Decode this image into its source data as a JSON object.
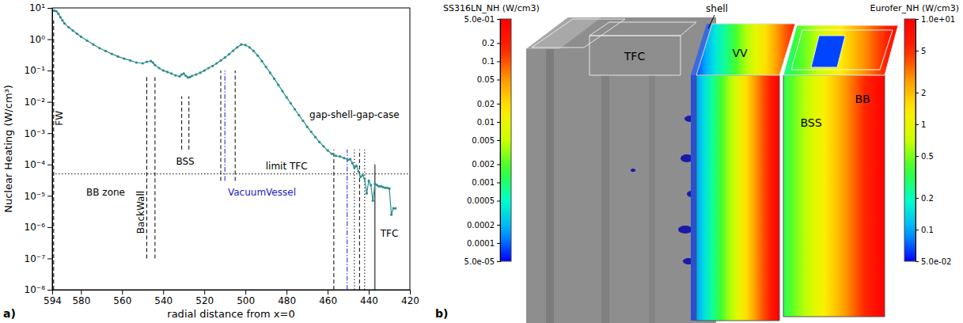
{
  "chart_data": [
    {
      "type": "line",
      "panel": "a)",
      "x_label": "radial distance from x=0",
      "y_label": "Nuclear Heating (W/cm³)",
      "log": "y",
      "xlim": [
        594,
        420
      ],
      "ylim": [
        1e-08,
        10
      ],
      "xticks": [
        594,
        580,
        560,
        540,
        520,
        500,
        480,
        460,
        440,
        420
      ],
      "yticks": [
        {
          "value": 1e-08,
          "label": "10⁻⁸"
        },
        {
          "value": 1e-07,
          "label": "10⁻⁷"
        },
        {
          "value": 1e-06,
          "label": "10⁻⁶"
        },
        {
          "value": 1e-05,
          "label": "10⁻⁵"
        },
        {
          "value": 0.0001,
          "label": "10⁻⁴"
        },
        {
          "value": 0.001,
          "label": "10⁻³"
        },
        {
          "value": 0.01,
          "label": "10⁻²"
        },
        {
          "value": 0.1,
          "label": "10⁻¹"
        },
        {
          "value": 1,
          "label": "10⁰"
        },
        {
          "value": 10,
          "label": "10¹"
        }
      ],
      "color": "#2b8c8c",
      "marker": "circle",
      "line_style": "solid",
      "x": [
        594,
        593,
        592,
        591,
        590,
        589,
        588,
        586,
        584,
        582,
        580,
        577,
        574,
        571,
        568,
        565,
        562,
        559,
        556,
        553,
        550,
        548,
        546,
        545,
        544,
        542,
        540,
        538,
        536,
        534,
        532,
        531,
        530,
        529,
        528,
        527,
        526,
        524,
        522,
        520,
        518,
        516,
        514,
        512,
        510,
        508,
        506,
        504,
        502,
        500,
        498,
        496,
        494,
        492,
        490,
        488,
        486,
        484,
        482,
        480,
        478,
        476,
        474,
        472,
        470,
        468,
        466,
        464,
        462,
        460,
        458,
        456,
        454,
        452,
        450,
        449,
        448,
        447,
        446,
        445,
        444,
        443,
        442,
        441,
        440,
        439,
        438,
        437,
        436,
        435,
        434,
        433,
        432,
        431,
        430,
        429,
        428,
        427
      ],
      "values": [
        8,
        8.2,
        7.8,
        6.5,
        5,
        4,
        3.2,
        2.4,
        1.9,
        1.5,
        1.2,
        0.9,
        0.68,
        0.52,
        0.42,
        0.34,
        0.28,
        0.24,
        0.21,
        0.18,
        0.17,
        0.19,
        0.2,
        0.18,
        0.15,
        0.12,
        0.1,
        0.09,
        0.08,
        0.07,
        0.065,
        0.075,
        0.08,
        0.068,
        0.06,
        0.062,
        0.068,
        0.075,
        0.085,
        0.1,
        0.12,
        0.14,
        0.17,
        0.21,
        0.26,
        0.33,
        0.43,
        0.55,
        0.68,
        0.65,
        0.55,
        0.42,
        0.3,
        0.2,
        0.13,
        0.085,
        0.055,
        0.035,
        0.022,
        0.014,
        0.009,
        0.0058,
        0.0038,
        0.0025,
        0.0016,
        0.0011,
        0.00075,
        0.00052,
        0.00038,
        0.00028,
        0.00022,
        0.00019,
        0.00018,
        0.00016,
        0.00014,
        0.00015,
        0.00011,
        8e-05,
        9e-05,
        6e-05,
        4e-05,
        4.5e-05,
        3.5e-05,
        1.2e-05,
        3e-05,
        2.2e-05,
        7e-06,
        2.4e-05,
        2.2e-05,
        2e-05,
        2e-05,
        1.9e-05,
        1.8e-05,
        1.8e-05,
        1.7e-05,
        2.5e-06,
        4e-06,
        4e-06
      ],
      "vlines": [
        {
          "x": 593.3,
          "y_top": 4,
          "y_bottom": 1e-08,
          "line_style": "dashed",
          "color": "#000000"
        },
        {
          "x": 548,
          "y_top": 0.07,
          "y_bottom": 1e-07,
          "line_style": "dashed",
          "color": "#000000"
        },
        {
          "x": 544,
          "y_top": 0.07,
          "y_bottom": 1e-07,
          "line_style": "dashed",
          "color": "#000000"
        },
        {
          "x": 531,
          "y_top": 0.015,
          "y_bottom": 0.0003,
          "line_style": "dashed",
          "color": "#000000"
        },
        {
          "x": 527.5,
          "y_top": 0.015,
          "y_bottom": 0.0003,
          "line_style": "dashed",
          "color": "#000000"
        },
        {
          "x": 512,
          "y_top": 0.1,
          "y_bottom": 3e-05,
          "line_style": "dashed",
          "color": "#000000"
        },
        {
          "x": 510,
          "y_top": 0.1,
          "y_bottom": 3e-05,
          "line_style": "dashdot",
          "color": "#1a1acc"
        },
        {
          "x": 505,
          "y_top": 0.1,
          "y_bottom": 3e-05,
          "line_style": "dashed",
          "color": "#000000"
        },
        {
          "x": 457,
          "y_top": 0.0003,
          "y_bottom": 1e-08,
          "line_style": "dashed",
          "color": "#000000"
        },
        {
          "x": 450.5,
          "y_top": 0.0003,
          "y_bottom": 1e-08,
          "line_style": "dashdot",
          "color": "#1a1acc"
        },
        {
          "x": 447,
          "y_top": 0.0003,
          "y_bottom": 1e-08,
          "line_style": "dotted",
          "color": "#000000"
        },
        {
          "x": 444.5,
          "y_top": 0.0003,
          "y_bottom": 1e-08,
          "line_style": "dashed",
          "color": "#000000"
        },
        {
          "x": 442,
          "y_top": 0.0003,
          "y_bottom": 1e-08,
          "line_style": "dotted",
          "color": "#000000"
        },
        {
          "x": 437,
          "y_top": 0.0001,
          "y_bottom": 1e-08,
          "line_style": "solid",
          "color": "#000000"
        }
      ],
      "hlines": [
        {
          "y": 5e-05,
          "line_style": "dotted",
          "color": "#000000"
        }
      ],
      "line_labels": [
        {
          "text": "FW",
          "x": 589,
          "y": 0.003
        },
        {
          "text": "BackWall",
          "x": 549.5,
          "y": 3e-06
        }
      ],
      "annotations": [
        {
          "text": "BB zone",
          "x": 568,
          "y": 1e-05,
          "color": "#000000"
        },
        {
          "text": "BSS",
          "x": 529.3,
          "y": 0.0001,
          "color": "#000000"
        },
        {
          "text": "VacuumVessel",
          "x": 492,
          "y": 1e-05,
          "color": "#1a1acc"
        },
        {
          "text": "gap-shell-gap-case",
          "x": 447,
          "y": 0.003,
          "color": "#000000"
        },
        {
          "text": "limit TFC",
          "x": 480,
          "y": 7e-05,
          "color": "#000000"
        },
        {
          "text": "TFC",
          "x": 430,
          "y": 5e-07,
          "color": "#000000"
        }
      ]
    },
    {
      "type": "image",
      "panel": "b)",
      "labels": [
        "TFC",
        "shell",
        "VV",
        "BB",
        "BSS"
      ],
      "colorbars": [
        {
          "title": "SS316LN_NH (W/cm3)",
          "log": true,
          "range": [
            5e-05,
            0.5
          ],
          "ticks": [
            {
              "value": 0.5,
              "label": "5.0e-01"
            },
            0.2,
            0.1,
            0.05,
            0.02,
            0.01,
            0.005,
            0.002,
            0.001,
            0.0005,
            0.0002,
            0.0001,
            {
              "value": 5e-05,
              "label": "5.0e-05"
            }
          ]
        },
        {
          "title": "Eurofer_NH (W/cm3)",
          "log": true,
          "range": [
            0.05,
            10
          ],
          "ticks": [
            {
              "value": 10,
              "label": "1.0e+01"
            },
            5,
            2,
            1,
            0.5,
            0.2,
            0.1,
            {
              "value": 0.05,
              "label": "5.0e-02"
            }
          ]
        }
      ]
    }
  ]
}
